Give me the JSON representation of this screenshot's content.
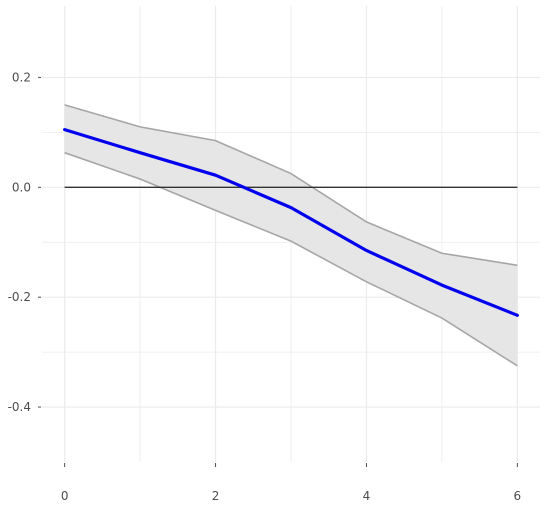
{
  "chart_data": {
    "type": "line",
    "title": "",
    "xlabel": "",
    "ylabel": "",
    "x": [
      0,
      1,
      2,
      3,
      4,
      5,
      6
    ],
    "series": [
      {
        "values": [
          0.105,
          0.063,
          0.022,
          -0.037,
          -0.115,
          -0.178,
          -0.233
        ],
        "color": "#0000ee"
      }
    ],
    "band": {
      "lower": [
        0.063,
        0.015,
        -0.042,
        -0.098,
        -0.172,
        -0.238,
        -0.325
      ],
      "upper": [
        0.15,
        0.11,
        0.085,
        0.025,
        -0.063,
        -0.12,
        -0.142
      ],
      "fill": "#e6e6e6",
      "stroke": "#a6a6a6"
    },
    "reference_line": {
      "y": 0,
      "color": "#333333"
    },
    "xlim": [
      -0.3,
      6.3
    ],
    "ylim": [
      -0.5,
      0.33
    ],
    "x_ticks": [
      0,
      2,
      4,
      6
    ],
    "x_tick_labels": [
      "0",
      "2",
      "4",
      "6"
    ],
    "y_ticks": [
      0.2,
      0.0,
      -0.2,
      -0.4
    ],
    "y_tick_labels": [
      "0.2",
      "0.0",
      "-0.2",
      "-0.4"
    ],
    "x_minor": [
      1,
      3,
      5
    ],
    "y_minor": [
      0.1,
      -0.1,
      -0.3
    ],
    "grid": true,
    "legend": "none",
    "background": "#ffffff",
    "grid_color": "#ebebeb",
    "tick_color": "#4d4d4d"
  }
}
